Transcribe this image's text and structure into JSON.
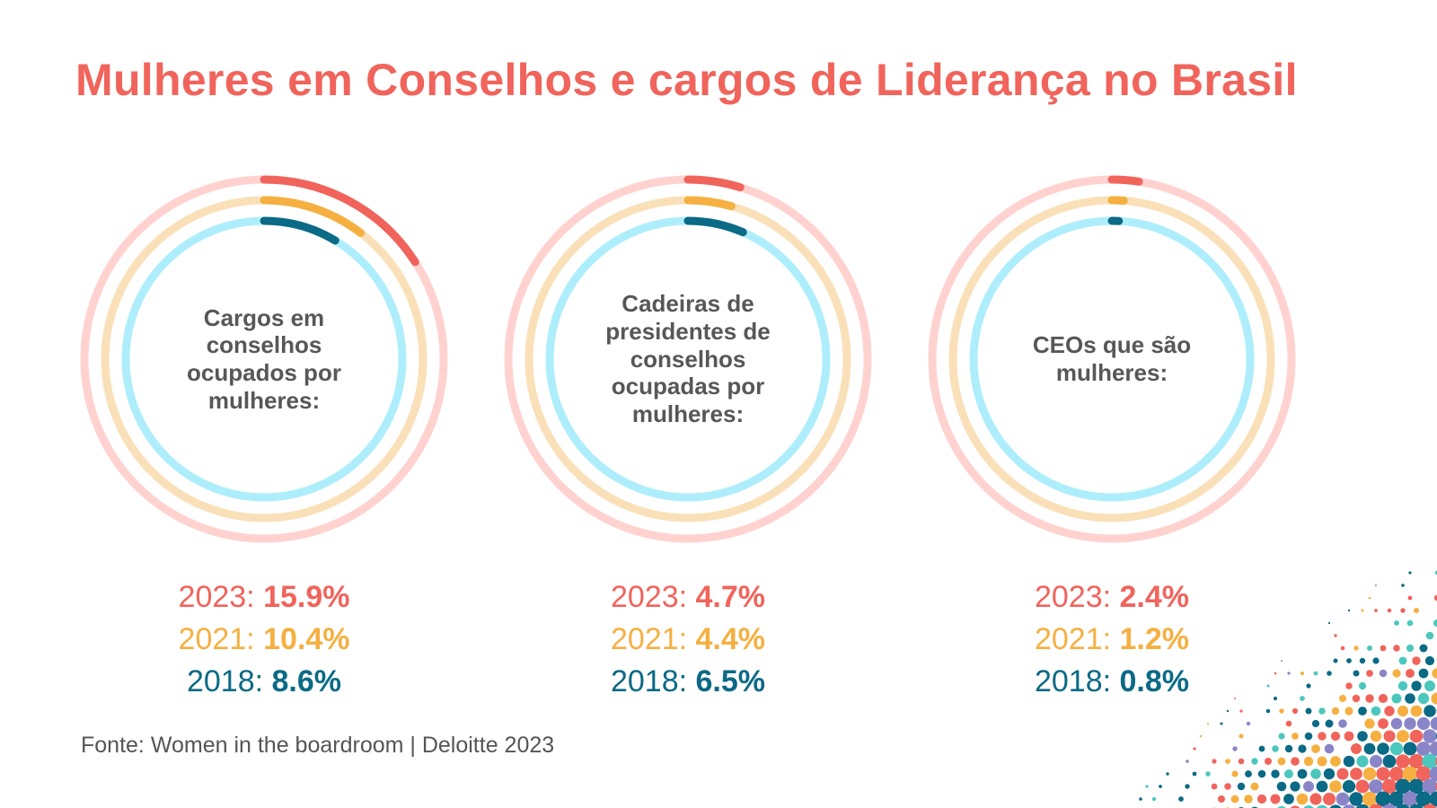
{
  "title": "Mulheres em Conselhos e cargos de Liderança no Brasil",
  "source": "Fonte: Women in the boardroom | Deloitte 2023",
  "colors": {
    "title": "#f0645c",
    "series": [
      "#f0645c",
      "#f5b041",
      "#0b6a85"
    ],
    "tracks": [
      "#ffd2d0",
      "#fae0b8",
      "#aeeefc"
    ],
    "label_text": "#575757",
    "source_text": "#555555"
  },
  "chart_data": [
    {
      "type": "radial_bar",
      "label": "Cargos em conselhos ocupados por mulheres:",
      "series": [
        {
          "name": "2023",
          "value": 15.9,
          "display": "2023: ",
          "value_text": "15.9%"
        },
        {
          "name": "2021",
          "value": 10.4,
          "display": "2021: ",
          "value_text": "10.4%"
        },
        {
          "name": "2018",
          "value": 8.6,
          "display": "2018: ",
          "value_text": "8.6%"
        }
      ]
    },
    {
      "type": "radial_bar",
      "label": "Cadeiras de presidentes de conselhos ocupadas por mulheres:",
      "series": [
        {
          "name": "2023",
          "value": 4.7,
          "display": "2023: ",
          "value_text": "4.7%"
        },
        {
          "name": "2021",
          "value": 4.4,
          "display": "2021: ",
          "value_text": "4.4%"
        },
        {
          "name": "2018",
          "value": 6.5,
          "display": "2018: ",
          "value_text": "6.5%"
        }
      ]
    },
    {
      "type": "radial_bar",
      "label": "CEOs que são mulheres:",
      "series": [
        {
          "name": "2023",
          "value": 2.4,
          "display": "2023: ",
          "value_text": "2.4%"
        },
        {
          "name": "2021",
          "value": 1.2,
          "display": "2021: ",
          "value_text": "1.2%"
        },
        {
          "name": "2018",
          "value": 0.8,
          "display": "2018: ",
          "value_text": "0.8%"
        }
      ]
    }
  ]
}
